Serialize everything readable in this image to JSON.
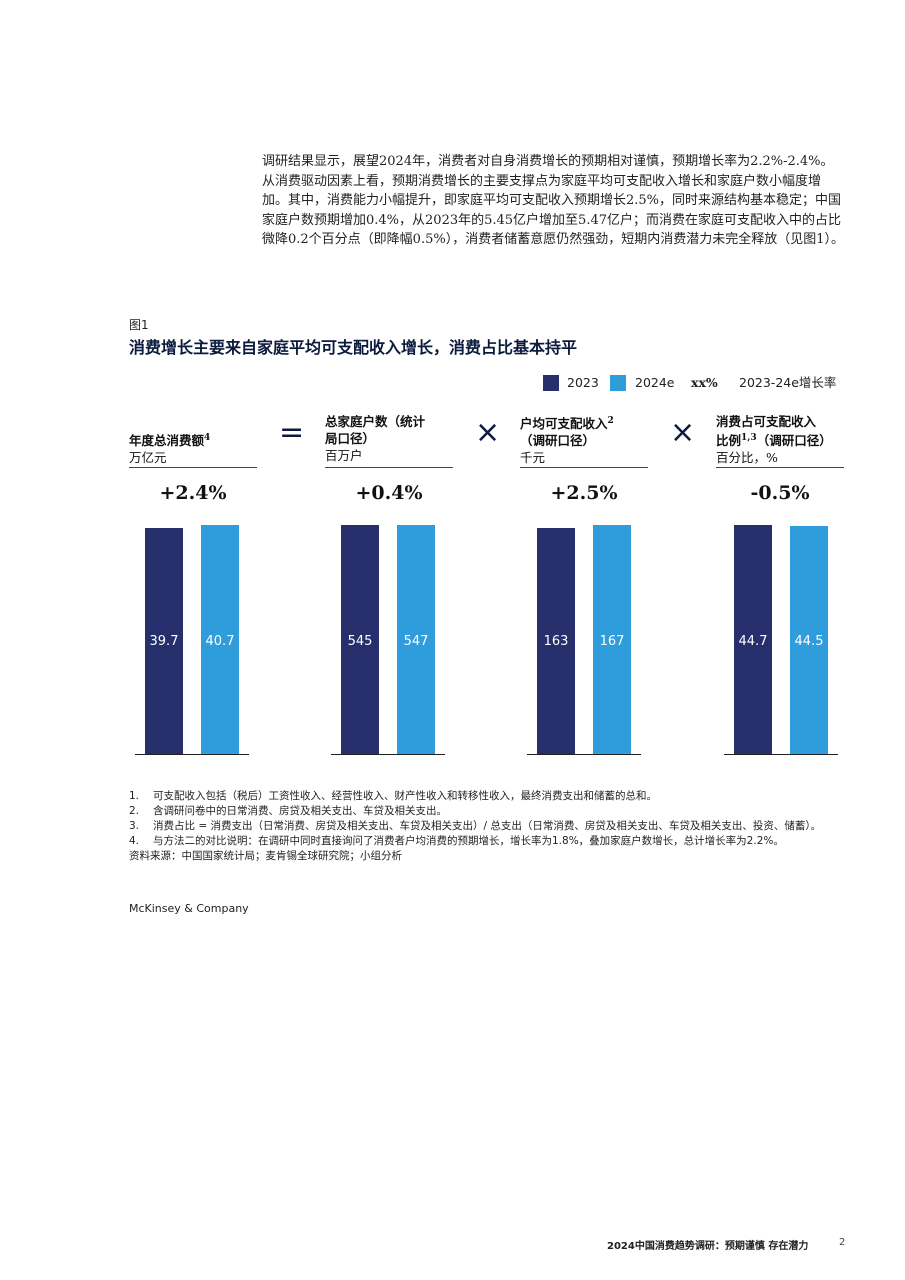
{
  "intro_paragraph": "调研结果显示，展望2024年，消费者对自身消费增长的预期相对谨慎，预期增长率为2.2%-2.4%。从消费驱动因素上看，预期消费增长的主要支撑点为家庭平均可支配收入增长和家庭户数小幅度增加。其中，消费能力小幅提升，即家庭平均可支配收入预期增长2.5%，同时来源结构基本稳定；中国家庭户数预期增加0.4%，从2023年的5.45亿户增加至5.47亿户；而消费在家庭可支配收入中的占比微降0.2个百分点（即降幅0.5%），消费者储蓄意愿仍然强劲，短期内消费潜力未完全释放（见图1）。",
  "figure": {
    "label": "图1",
    "title": "消费增长主要来自家庭平均可支配收入增长，消费占比基本持平"
  },
  "legend": {
    "items": [
      {
        "label": "2023",
        "color": "#262f6b"
      },
      {
        "label": "2024e",
        "color": "#2f9ddc"
      }
    ],
    "growth_symbol": "xx%",
    "growth_label": "2023-24e增长率"
  },
  "operators": [
    "=",
    "×",
    "×"
  ],
  "colors": {
    "bar_2023": "#262f6b",
    "bar_2024e": "#2f9ddc",
    "title": "#0b1a3d"
  },
  "chart_data": {
    "type": "bar",
    "categories": [
      "2023",
      "2024e"
    ],
    "panels": [
      {
        "title": "年度总消费额",
        "superscript": "4",
        "unit": "万亿元",
        "growth": "+2.4%",
        "values": [
          39.7,
          40.7
        ],
        "labels": [
          "39.7",
          "40.7"
        ]
      },
      {
        "title": "总家庭户数（统计局口径）",
        "superscript": "",
        "unit": "百万户",
        "growth": "+0.4%",
        "values": [
          545,
          547
        ],
        "labels": [
          "545",
          "547"
        ]
      },
      {
        "title": "户均可支配收入",
        "superscript": "2",
        "title_line2": "（调研口径）",
        "unit": "千元",
        "growth": "+2.5%",
        "values": [
          163,
          167
        ],
        "labels": [
          "163",
          "167"
        ]
      },
      {
        "title": "消费占可支配收入比例",
        "superscript": "1,3",
        "title_line2": "（调研口径）",
        "unit": "百分比，%",
        "growth": "-0.5%",
        "values": [
          44.7,
          44.5
        ],
        "labels": [
          "44.7",
          "44.5"
        ]
      }
    ]
  },
  "panel_heads": [
    {
      "line1": "年度总消费额",
      "sup": "4",
      "line2": "",
      "unit": "万亿元"
    },
    {
      "line1": "总家庭户数（统计",
      "sup": "",
      "line2": "局口径）",
      "unit": "百万户"
    },
    {
      "line1": "户均可支配收入",
      "sup": "2",
      "line2": "（调研口径）",
      "unit": "千元"
    },
    {
      "line1": "消费占可支配收入",
      "sup": "",
      "line2": "比例",
      "sup2": "1,3",
      "line2b": "（调研口径）",
      "unit": "百分比，%"
    }
  ],
  "footnotes": [
    {
      "n": "1.",
      "text": "可支配收入包括（税后）工资性收入、经营性收入、财产性收入和转移性收入，最终消费支出和储蓄的总和。"
    },
    {
      "n": "2.",
      "text": "含调研问卷中的日常消费、房贷及相关支出、车贷及相关支出。"
    },
    {
      "n": "3.",
      "text": "消费占比 = 消费支出（日常消费、房贷及相关支出、车贷及相关支出）/ 总支出（日常消费、房贷及相关支出、车贷及相关支出、投资、储蓄）。"
    },
    {
      "n": "4.",
      "text": "与方法二的对比说明：在调研中同时直接询问了消费者户均消费的预期增长，增长率为1.8%，叠加家庭户数增长，总计增长率为2.2%。"
    }
  ],
  "source": "资料来源：中国国家统计局；麦肯锡全球研究院；小组分析",
  "brand": "McKinsey & Company",
  "footer": {
    "title": "2024中国消费趋势调研：预期谨慎 存在潜力",
    "page": "2"
  }
}
